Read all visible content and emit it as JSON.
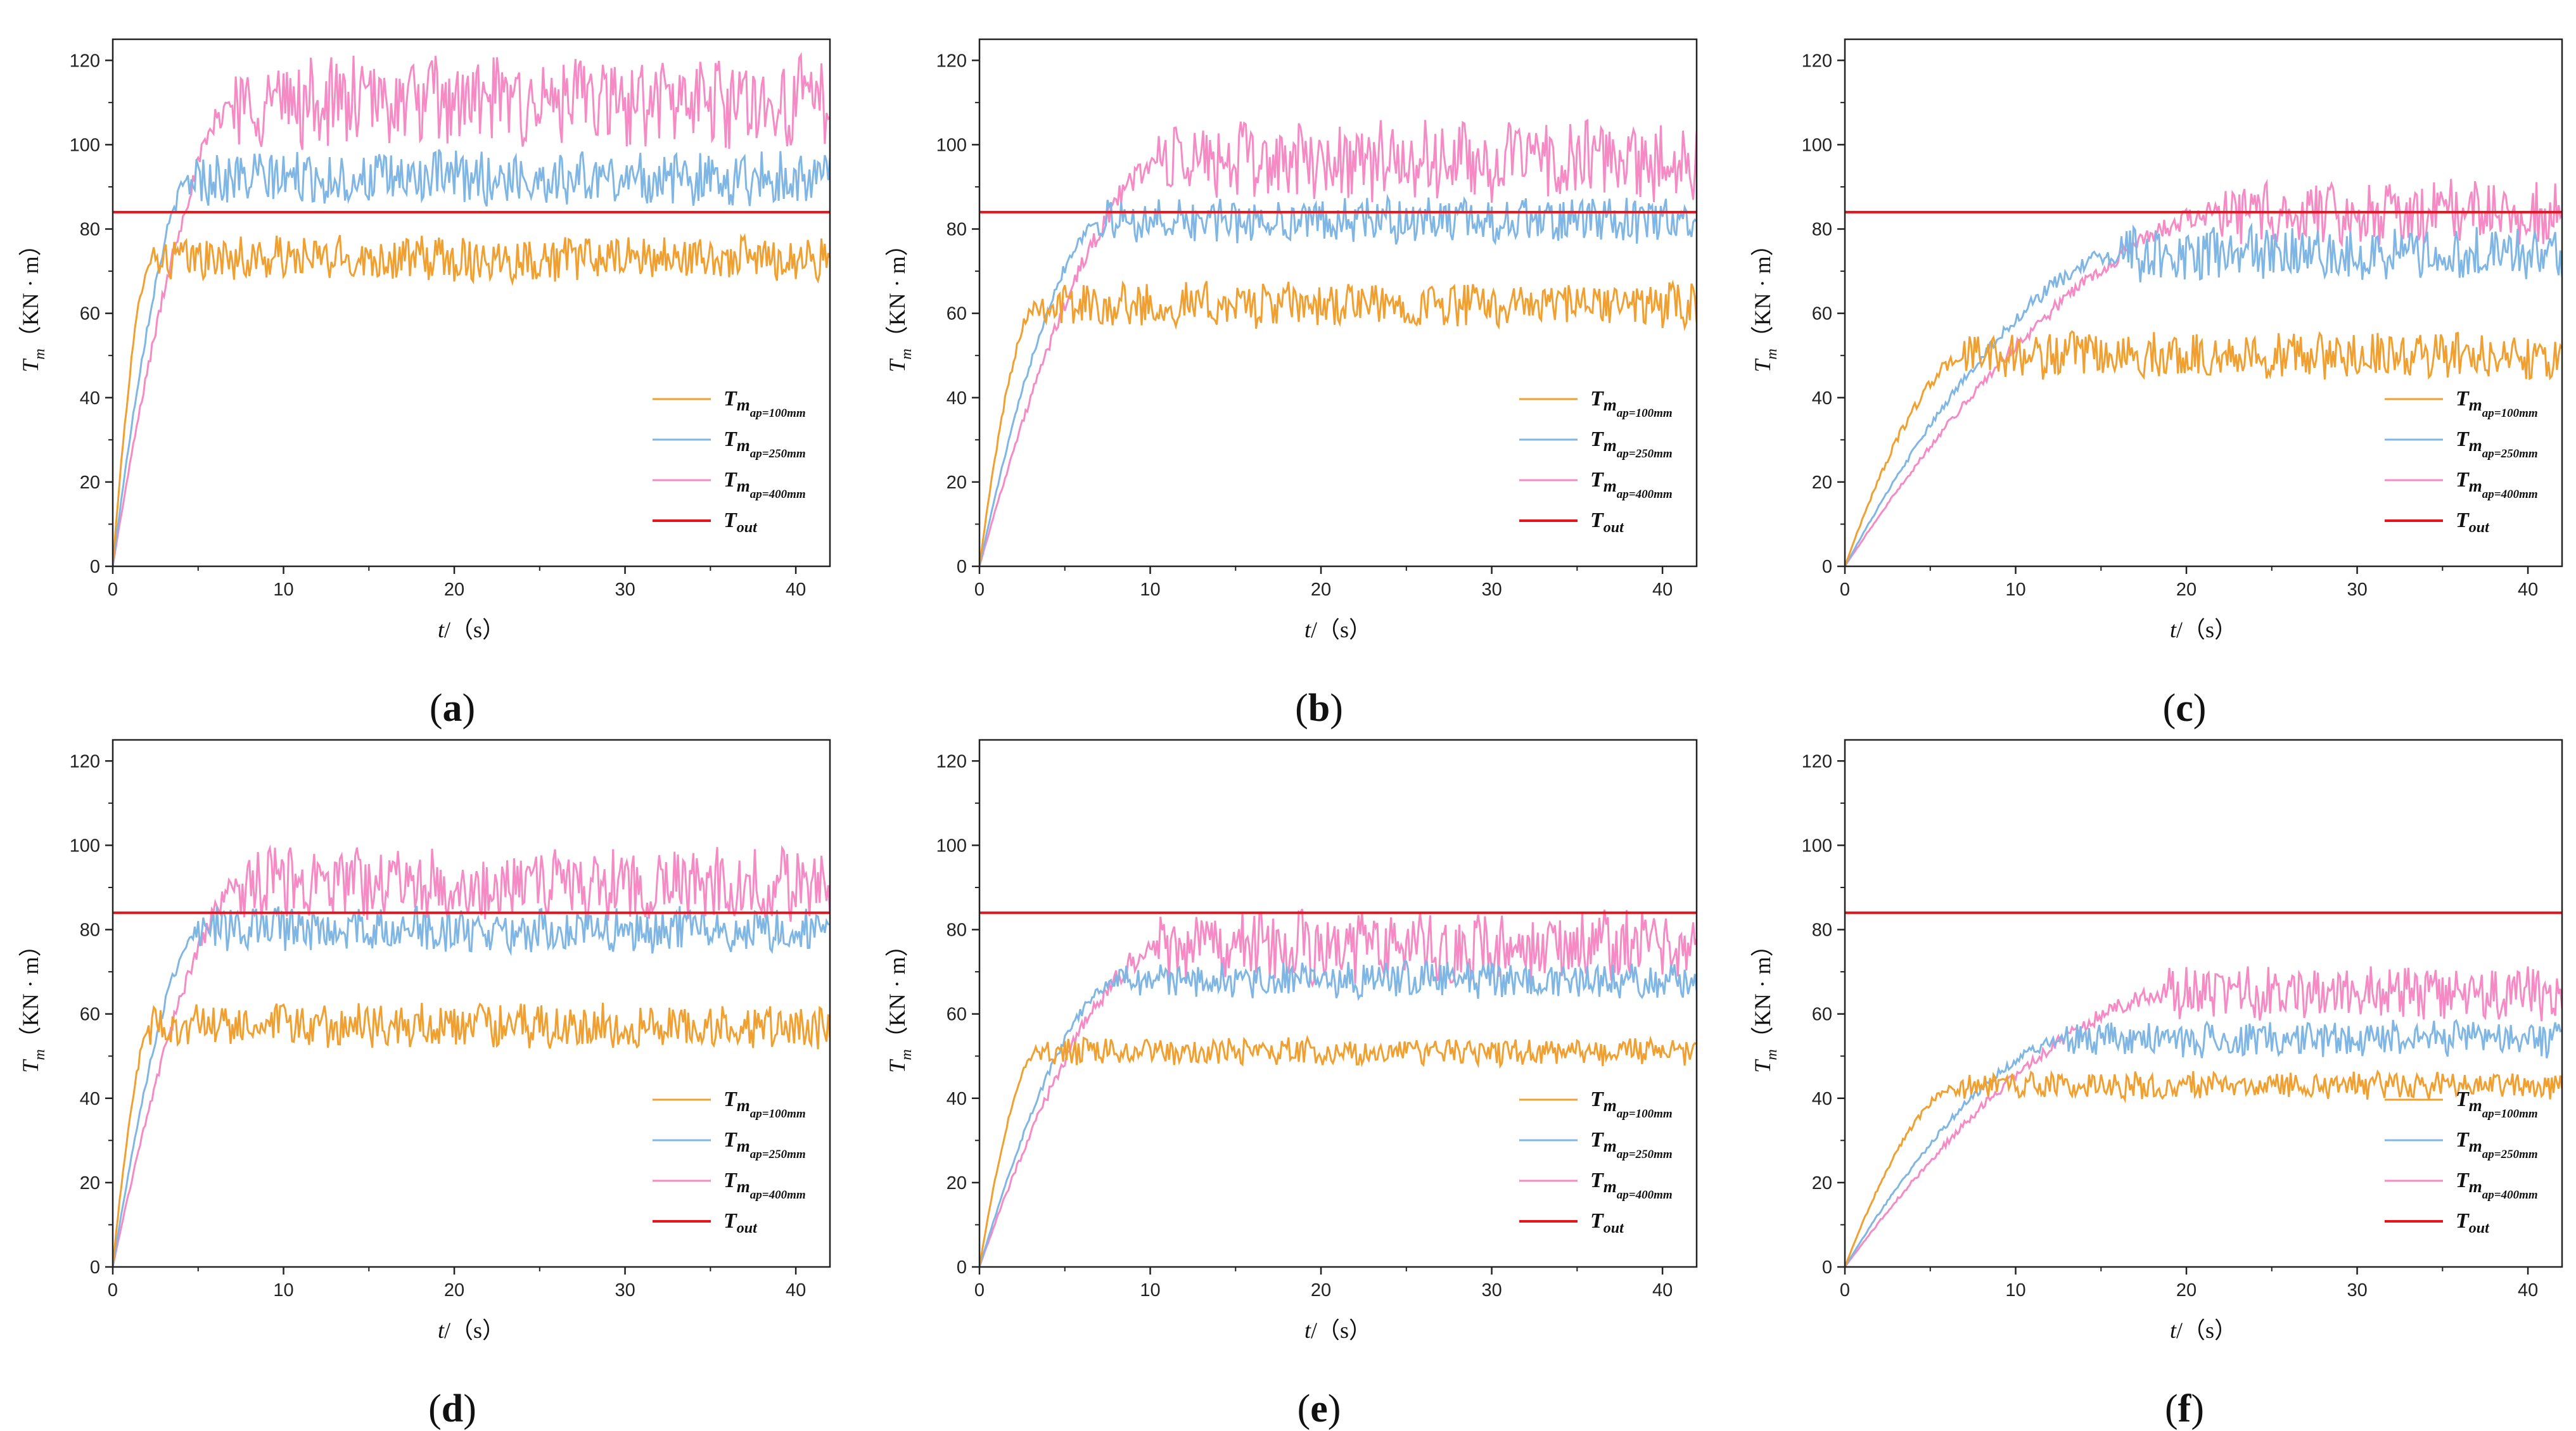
{
  "figure": {
    "panels": [
      "(a)",
      "(b)",
      "(c)",
      "(d)",
      "(e)",
      "(f)"
    ]
  },
  "colors": {
    "ap100": "#f0a030",
    "ap250": "#7fb6e4",
    "ap400": "#f58ac4",
    "out": "#e8141c",
    "axis": "#222222"
  },
  "legend": {
    "main": "T",
    "items": [
      {
        "main": "m",
        "sub": "ap=100mm",
        "color_key": "ap100"
      },
      {
        "main": "m",
        "sub": "ap=250mm",
        "color_key": "ap250"
      },
      {
        "main": "m",
        "sub": "ap=400mm",
        "color_key": "ap400"
      },
      {
        "main": "out",
        "sub": "",
        "color_key": "out"
      }
    ]
  },
  "axes": {
    "ylabel_main": "T",
    "ylabel_sub": "m",
    "ylabel_units": "（KN · m）",
    "xlabel_main": "t",
    "xlabel_units": "/（s）"
  },
  "chart_data": [
    {
      "type": "line",
      "label": "(a)",
      "xlim": [
        0,
        42
      ],
      "ylim": [
        0,
        125
      ],
      "xticks": [
        0,
        10,
        20,
        30,
        40
      ],
      "yticks": [
        0,
        20,
        40,
        60,
        80,
        100,
        120
      ],
      "xlabel": "t/（s）",
      "ylabel": "Tm（KN · m）",
      "series": [
        {
          "name": "Tm ap=100mm",
          "rise_time": 2.2,
          "level": 73,
          "amplitude": 5
        },
        {
          "name": "Tm ap=250mm",
          "rise_time": 4.5,
          "level": 92,
          "amplitude": 6
        },
        {
          "name": "Tm ap=400mm",
          "rise_time": 7.0,
          "level": 110,
          "amplitude": 10
        },
        {
          "name": "Tout",
          "value": 84
        }
      ]
    },
    {
      "type": "line",
      "label": "(b)",
      "xlim": [
        0,
        42
      ],
      "ylim": [
        0,
        125
      ],
      "xticks": [
        0,
        10,
        20,
        30,
        40
      ],
      "yticks": [
        0,
        20,
        40,
        60,
        80,
        100,
        120
      ],
      "xlabel": "t/（s）",
      "ylabel": "Tm（KN · m）",
      "series": [
        {
          "name": "Tm ap=100mm",
          "rise_time": 3.2,
          "level": 62,
          "amplitude": 5
        },
        {
          "name": "Tm ap=250mm",
          "rise_time": 7.0,
          "level": 82,
          "amplitude": 5
        },
        {
          "name": "Tm ap=400mm",
          "rise_time": 10.5,
          "level": 96,
          "amplitude": 9
        },
        {
          "name": "Tout",
          "value": 84
        }
      ]
    },
    {
      "type": "line",
      "label": "(c)",
      "xlim": [
        0,
        42
      ],
      "ylim": [
        0,
        125
      ],
      "xticks": [
        0,
        10,
        20,
        30,
        40
      ],
      "yticks": [
        0,
        20,
        40,
        60,
        80,
        100,
        120
      ],
      "xlabel": "t/（s）",
      "ylabel": "Tm（KN · m）",
      "series": [
        {
          "name": "Tm ap=100mm",
          "rise_time": 7.0,
          "level": 50,
          "amplitude": 5
        },
        {
          "name": "Tm ap=250mm",
          "rise_time": 16.0,
          "level": 74,
          "amplitude": 6
        },
        {
          "name": "Tm ap=400mm",
          "rise_time": 22.0,
          "level": 84,
          "amplitude": 7
        },
        {
          "name": "Tout",
          "value": 84
        }
      ]
    },
    {
      "type": "line",
      "label": "(d)",
      "xlim": [
        0,
        42
      ],
      "ylim": [
        0,
        125
      ],
      "xticks": [
        0,
        10,
        20,
        30,
        40
      ],
      "yticks": [
        0,
        20,
        40,
        60,
        80,
        100,
        120
      ],
      "xlabel": "t/（s）",
      "ylabel": "Tm（KN · m）",
      "series": [
        {
          "name": "Tm ap=100mm",
          "rise_time": 2.2,
          "level": 57,
          "amplitude": 5
        },
        {
          "name": "Tm ap=250mm",
          "rise_time": 5.0,
          "level": 80,
          "amplitude": 5
        },
        {
          "name": "Tm ap=400mm",
          "rise_time": 7.5,
          "level": 91,
          "amplitude": 8
        },
        {
          "name": "Tout",
          "value": 84
        }
      ]
    },
    {
      "type": "line",
      "label": "(e)",
      "xlim": [
        0,
        42
      ],
      "ylim": [
        0,
        125
      ],
      "xticks": [
        0,
        10,
        20,
        30,
        40
      ],
      "yticks": [
        0,
        20,
        40,
        60,
        80,
        100,
        120
      ],
      "xlabel": "t/（s）",
      "ylabel": "Tm（KN · m）",
      "series": [
        {
          "name": "Tm ap=100mm",
          "rise_time": 3.3,
          "level": 51,
          "amplitude": 3
        },
        {
          "name": "Tm ap=250mm",
          "rise_time": 8.0,
          "level": 68,
          "amplitude": 4
        },
        {
          "name": "Tm ap=400mm",
          "rise_time": 10.5,
          "level": 76,
          "amplitude": 8
        },
        {
          "name": "Tout",
          "value": 84
        }
      ]
    },
    {
      "type": "line",
      "label": "(f)",
      "xlim": [
        0,
        42
      ],
      "ylim": [
        0,
        125
      ],
      "xticks": [
        0,
        10,
        20,
        30,
        40
      ],
      "yticks": [
        0,
        20,
        40,
        60,
        80,
        100,
        120
      ],
      "xlabel": "t/（s）",
      "ylabel": "Tm（KN · m）",
      "series": [
        {
          "name": "Tm ap=100mm",
          "rise_time": 6.5,
          "level": 43,
          "amplitude": 3
        },
        {
          "name": "Tm ap=250mm",
          "rise_time": 13.0,
          "level": 54,
          "amplitude": 4
        },
        {
          "name": "Tm ap=400mm",
          "rise_time": 19.0,
          "level": 65,
          "amplitude": 6
        },
        {
          "name": "Tout",
          "value": 84
        }
      ]
    }
  ]
}
